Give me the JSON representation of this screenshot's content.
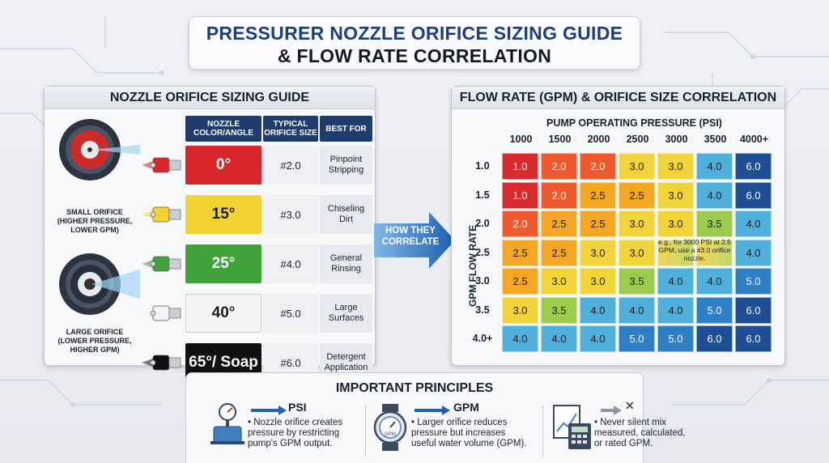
{
  "title": {
    "line1": "PRESSURER NOZZLE ORIFICE SIZING GUIDE",
    "line2": "& FLOW RATE CORRELATION"
  },
  "left_panel": {
    "heading": "NOZZLE ORIFICE SIZING GUIDE",
    "columns": [
      "NOZZLE COLOR/ANGLE",
      "TYPICAL ORIFICE SIZE",
      "BEST FOR"
    ],
    "small_orifice_label": "SMALL ORIFICE (HIGHER PRESSURE, LOWER GPM)",
    "large_orifice_label": "LARGE ORIFICE (LOWER PRESSURE, HIGHER GPM)",
    "rows": [
      {
        "angle": "0°",
        "size": "#2.0",
        "best": "Pinpoint Stripping",
        "color": "#d8262b",
        "text_color": "#ffffff"
      },
      {
        "angle": "15°",
        "size": "#3.0",
        "best": "Chiseling Dirt",
        "color": "#f3d233",
        "text_color": "#1a1a1a"
      },
      {
        "angle": "25°",
        "size": "#4.0",
        "best": "General Rinsing",
        "color": "#3fa33a",
        "text_color": "#ffffff"
      },
      {
        "angle": "40°",
        "size": "#5.0",
        "best": "Large Surfaces",
        "color": "#f4f4f4",
        "text_color": "#1a1a1a"
      },
      {
        "angle": "65°/ Soap",
        "size": "#6.0",
        "best": "Detergent Application",
        "color": "#111111",
        "text_color": "#ffffff"
      }
    ]
  },
  "connector": {
    "label": "HOW THEY CORRELATE"
  },
  "right_panel": {
    "heading": "FLOW RATE (GPM) & ORIFICE SIZE CORRELATION",
    "x_title": "PUMP OPERATING PRESSURE (PSI)",
    "y_title": "GPM FLOW RATE",
    "psi": [
      "1000",
      "1500",
      "2000",
      "2500",
      "3000",
      "3500",
      "4000+"
    ],
    "gpm": [
      "1.0",
      "1.5",
      "2.0",
      "2.5",
      "3.0",
      "3.5",
      "4.0+"
    ],
    "note": "e.g., for 3000 PSI at 2.5 GPM, use a #3.0 orifice nozzle."
  },
  "chart_data": {
    "type": "heatmap",
    "title": "FLOW RATE (GPM) & ORIFICE SIZE CORRELATION",
    "xlabel": "PUMP OPERATING PRESSURE (PSI)",
    "ylabel": "GPM FLOW RATE",
    "x": [
      "1000",
      "1500",
      "2000",
      "2500",
      "3000",
      "3500",
      "4000+"
    ],
    "y": [
      "1.0",
      "1.5",
      "2.0",
      "2.5",
      "3.0",
      "3.5",
      "4.0+"
    ],
    "values": [
      [
        "1.0",
        "2.0",
        "2.0",
        "3.0",
        "3.0",
        "4.0",
        "6.0"
      ],
      [
        "1.0",
        "2.0",
        "2.5",
        "2.5",
        "3.0",
        "4.0",
        "6.0"
      ],
      [
        "2.0",
        "2.5",
        "2.5",
        "3.0",
        "3.0",
        "3.5",
        "4.0"
      ],
      [
        "2.5",
        "2.5",
        "3.0",
        "3.0",
        "",
        "",
        "4.0"
      ],
      [
        "2.5",
        "3.0",
        "3.0",
        "3.5",
        "4.0",
        "4.0",
        "5.0"
      ],
      [
        "3.0",
        "3.5",
        "4.0",
        "4.0",
        "4.0",
        "5.0",
        "6.0"
      ],
      [
        "4.0",
        "4.0",
        "4.0",
        "5.0",
        "5.0",
        "6.0",
        "6.0"
      ]
    ],
    "scale_colors": {
      "1.0": "#d92b2b",
      "2.0": "#ee5a2b",
      "2.5": "#f5a623",
      "3.0": "#f2d338",
      "3.5": "#9ccc4b",
      "4.0": "#4fb0dc",
      "5.0": "#2f7fc4",
      "6.0": "#1e4f94"
    }
  },
  "principles": {
    "heading": "IMPORTANT PRINCIPLES",
    "items": [
      {
        "label": "PSI",
        "text": "• Nozzle orifice creates pressure by restricting pump's GPM output."
      },
      {
        "label": "GPM",
        "text": "• Larger orifice reduces pressure but increases useful water volume (GPM)."
      },
      {
        "label": "✕",
        "text": "• Never silent mix measured, calculated, or rated GPM."
      }
    ]
  }
}
